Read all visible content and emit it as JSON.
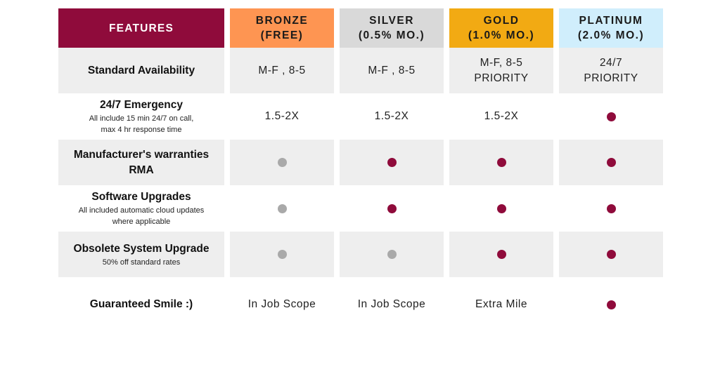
{
  "colors": {
    "features_header": "#8f0b3b",
    "bronze": "#fe9552",
    "silver": "#d9d9d9",
    "gold": "#f2aa13",
    "platinum": "#d0eefc",
    "row_shade": "#eeeeee",
    "dot_included": "#8f0b3b",
    "dot_basic": "#a9a9a9"
  },
  "header": {
    "features": "FEATURES",
    "tiers": [
      {
        "name": "BRONZE",
        "price": "(FREE)"
      },
      {
        "name": "SILVER",
        "price": "(0.5% MO.)"
      },
      {
        "name": "GOLD",
        "price": "(1.0% MO.)"
      },
      {
        "name": "PLATINUM",
        "price": "(2.0% MO.)"
      }
    ]
  },
  "rows": [
    {
      "title": "Standard Availability",
      "sub": "",
      "cells": [
        {
          "line1": "M-F , 8-5",
          "line2": ""
        },
        {
          "line1": "M-F , 8-5",
          "line2": ""
        },
        {
          "line1": "M-F, 8-5",
          "line2": "PRIORITY"
        },
        {
          "line1": "24/7",
          "line2": "PRIORITY"
        }
      ]
    },
    {
      "title": "24/7 Emergency",
      "sub_line1": "All include 15 min 24/7 on call,",
      "sub_line2": "max 4 hr response time",
      "cells": [
        "1.5-2X",
        "1.5-2X",
        "1.5-2X",
        "dot-maroon"
      ]
    },
    {
      "title_line1": "Manufacturer's warranties",
      "title_line2": "RMA",
      "cells": [
        "dot-gray",
        "dot-maroon",
        "dot-maroon",
        "dot-maroon"
      ]
    },
    {
      "title": "Software Upgrades",
      "sub_line1": "All included automatic cloud updates",
      "sub_line2": "where applicable",
      "cells": [
        "dot-gray",
        "dot-maroon",
        "dot-maroon",
        "dot-maroon"
      ]
    },
    {
      "title": "Obsolete System Upgrade",
      "sub_line1": "50% off standard rates",
      "cells": [
        "dot-gray",
        "dot-gray",
        "dot-maroon",
        "dot-maroon"
      ]
    },
    {
      "title": "Guaranteed Smile :)",
      "cells": [
        "In Job Scope",
        "In Job Scope",
        "Extra Mile",
        "dot-maroon"
      ]
    }
  ]
}
